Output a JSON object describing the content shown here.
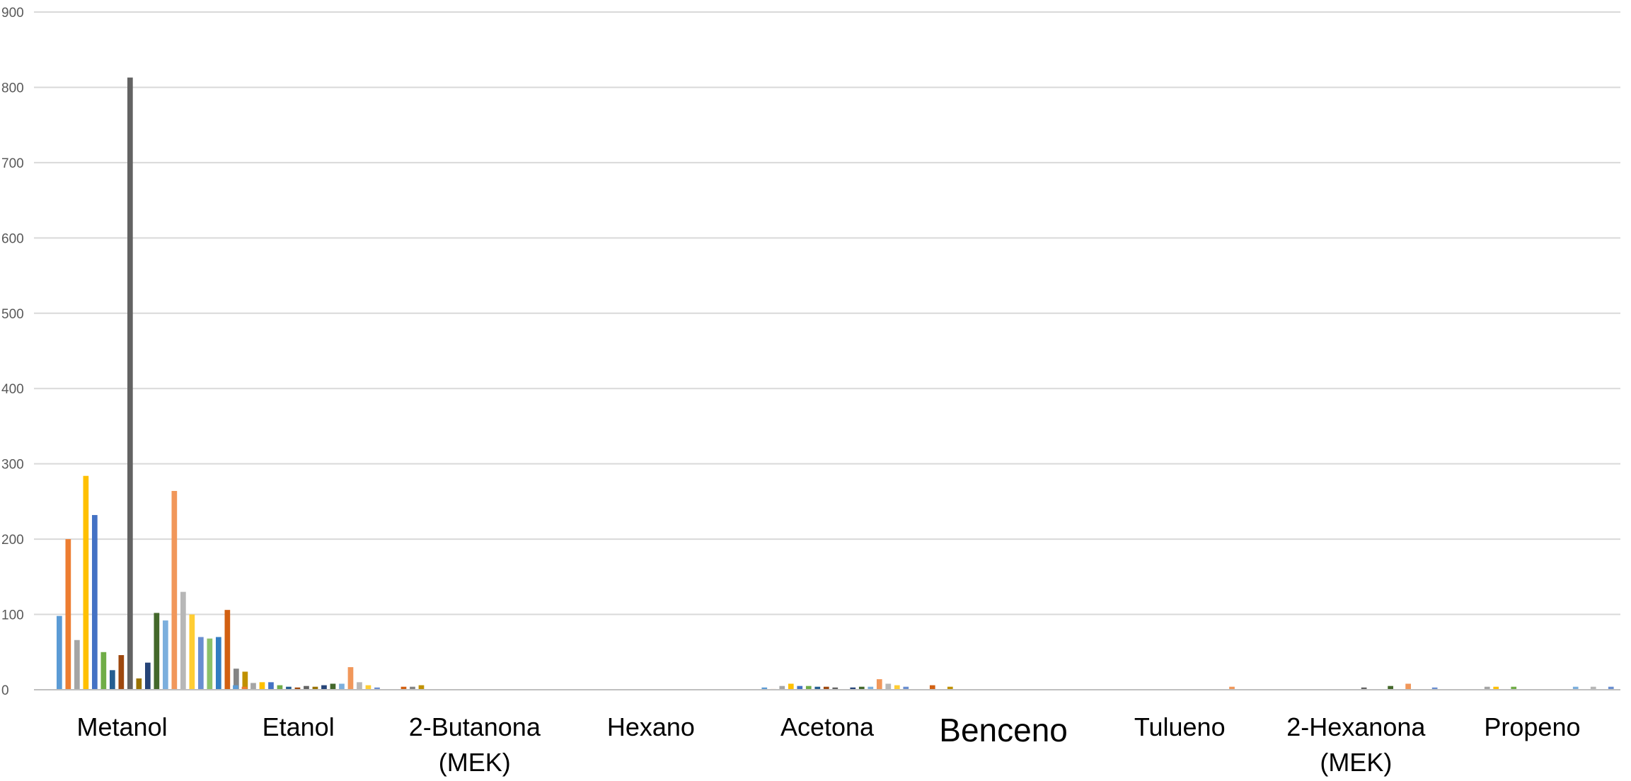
{
  "chart_data": {
    "type": "bar",
    "title": "",
    "xlabel": "",
    "ylabel": "",
    "ylim": [
      0,
      900
    ],
    "yticks": [
      0,
      100,
      200,
      300,
      400,
      500,
      600,
      700,
      800,
      900
    ],
    "grid": true,
    "legend": "none",
    "categories": [
      {
        "label": "Metanol",
        "lines": [
          "Metanol"
        ]
      },
      {
        "label": "Etanol",
        "lines": [
          "Etanol"
        ]
      },
      {
        "label": "2-Butanona (MEK)",
        "lines": [
          "2-Butanona",
          "(MEK)"
        ]
      },
      {
        "label": "Hexano",
        "lines": [
          "Hexano"
        ]
      },
      {
        "label": "Acetona",
        "lines": [
          "Acetona"
        ]
      },
      {
        "label": "Benceno",
        "lines": [
          "Benceno"
        ],
        "large": true
      },
      {
        "label": "Tulueno",
        "lines": [
          "Tulueno"
        ]
      },
      {
        "label": "2-Hexanona (MEK)",
        "lines": [
          "2-Hexanona",
          "(MEK)"
        ]
      },
      {
        "label": "Propeno",
        "lines": [
          "Propeno"
        ]
      }
    ],
    "series_colors": [
      "#5b9bd5",
      "#ed7d31",
      "#a5a5a5",
      "#ffc000",
      "#4472c4",
      "#70ad47",
      "#255e91",
      "#9e480e",
      "#636363",
      "#997300",
      "#264478",
      "#43682b",
      "#7cafdd",
      "#f1975a",
      "#b7b7b7",
      "#ffcd33",
      "#698ed0",
      "#8cc168",
      "#327dc2",
      "#d26012",
      "#848484",
      "#c09100"
    ],
    "series_values": [
      [
        98,
        6,
        0,
        0,
        3,
        0,
        0,
        0,
        0
      ],
      [
        200,
        4,
        0,
        0,
        1,
        0,
        0,
        0,
        0
      ],
      [
        66,
        9,
        0,
        0,
        5,
        0,
        0,
        0,
        4
      ],
      [
        284,
        10,
        0,
        0,
        8,
        0,
        0,
        0,
        4
      ],
      [
        232,
        10,
        0,
        0,
        5,
        0,
        0,
        0,
        0
      ],
      [
        50,
        6,
        0,
        0,
        5,
        0,
        0,
        0,
        4
      ],
      [
        26,
        4,
        0,
        0,
        4,
        0,
        0,
        0,
        0
      ],
      [
        46,
        3,
        0,
        0,
        4,
        0,
        0,
        0,
        0
      ],
      [
        813,
        5,
        0,
        0,
        3,
        0,
        0,
        3,
        0
      ],
      [
        15,
        4,
        0,
        0,
        0,
        0,
        0,
        0,
        0
      ],
      [
        36,
        6,
        0,
        0,
        3,
        0,
        0,
        0,
        0
      ],
      [
        102,
        8,
        0,
        0,
        4,
        0,
        0,
        5,
        0
      ],
      [
        92,
        8,
        0,
        0,
        4,
        0,
        0,
        0,
        4
      ],
      [
        264,
        30,
        0,
        0,
        14,
        0,
        4,
        8,
        0
      ],
      [
        130,
        10,
        0,
        0,
        8,
        0,
        0,
        0,
        4
      ],
      [
        100,
        6,
        0,
        0,
        6,
        0,
        0,
        0,
        0
      ],
      [
        70,
        3,
        0,
        0,
        4,
        0,
        0,
        3,
        4
      ],
      [
        68,
        0,
        0,
        0,
        0,
        0,
        0,
        0,
        0
      ],
      [
        70,
        0,
        0,
        0,
        0,
        0,
        0,
        0,
        0
      ],
      [
        106,
        4,
        0,
        0,
        6,
        0,
        0,
        0,
        0
      ],
      [
        28,
        4,
        0,
        0,
        0,
        0,
        0,
        0,
        4
      ],
      [
        24,
        6,
        0,
        0,
        4,
        0,
        0,
        0,
        4
      ]
    ]
  }
}
